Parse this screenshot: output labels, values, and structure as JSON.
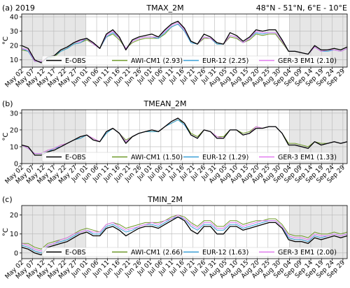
{
  "figure": {
    "background": "#ffffff"
  },
  "legend_colors": {
    "E-OBS": "#000000",
    "AWI": "#6f9a2a",
    "EUR": "#3aa0d8",
    "GER": "#e27cf0"
  },
  "chart_data": [
    {
      "type": "line",
      "panel_tag": "(a) 2019",
      "title": "TMAX_2M",
      "region_label": "48°N - 51°N, 6°E - 10°E",
      "ylabel": "°C",
      "ylim": [
        5,
        42
      ],
      "yticks": [
        10,
        20,
        30,
        40
      ],
      "xlim": [
        0,
        152
      ],
      "shaded_ranges": [
        [
          0,
          30
        ],
        [
          125,
          152
        ]
      ],
      "grid": true,
      "legend_placement": "bottom",
      "xtick_labels": [
        "May 02",
        "May 07",
        "May 12",
        "May 17",
        "May 22",
        "May 27",
        "Jun 01",
        "Jun 06",
        "Jun 11",
        "Jun 16",
        "Jun 21",
        "Jun 26",
        "Jul 01",
        "Jul 06",
        "Jul 11",
        "Jul 16",
        "Jul 21",
        "Jul 26",
        "Jul 31",
        "Aug 05",
        "Aug 10",
        "Aug 15",
        "Aug 20",
        "Aug 25",
        "Aug 30",
        "Sep 04",
        "Sep 09",
        "Sep 14",
        "Sep 19",
        "Sep 24",
        "Sep 29"
      ],
      "series": [
        {
          "name": "E-OBS",
          "key": "E-OBS",
          "values": [
            20,
            18,
            10,
            8,
            12,
            13,
            17,
            19,
            22,
            24,
            25,
            22,
            18,
            28,
            31,
            26,
            17,
            24,
            26,
            27,
            28,
            26,
            31,
            35,
            37,
            32,
            23,
            21,
            28,
            26,
            22,
            21,
            29,
            27,
            23,
            26,
            31,
            30,
            31,
            31,
            24,
            16,
            16,
            15,
            14,
            20,
            17,
            17,
            18,
            17,
            19
          ]
        },
        {
          "name": "AWI-CM1 (2.93)",
          "key": "AWI",
          "values": [
            17,
            16,
            9,
            9,
            11,
            12,
            16,
            18,
            21,
            22,
            24,
            21,
            18,
            26,
            28,
            24,
            18,
            22,
            24,
            25,
            25,
            25,
            28,
            33,
            35,
            30,
            23,
            21,
            25,
            25,
            21,
            21,
            26,
            25,
            22,
            24,
            28,
            27,
            28,
            28,
            22,
            16,
            16,
            15,
            14,
            19,
            16,
            17,
            17,
            16,
            18
          ]
        },
        {
          "name": "EUR-12 (2.25)",
          "key": "EUR",
          "values": [
            18,
            16,
            9,
            9,
            11,
            13,
            16,
            18,
            21,
            22,
            25,
            21,
            18,
            26,
            29,
            25,
            18,
            23,
            25,
            26,
            26,
            25,
            29,
            33,
            35,
            30,
            22,
            21,
            26,
            25,
            21,
            21,
            27,
            26,
            22,
            25,
            29,
            28,
            29,
            29,
            23,
            16,
            16,
            15,
            14,
            19,
            16,
            16,
            17,
            16,
            18
          ]
        },
        {
          "name": "GER-3 EM1 (2.10)",
          "key": "GER",
          "values": [
            18,
            17,
            9,
            9,
            12,
            13,
            17,
            19,
            22,
            23,
            25,
            21,
            18,
            27,
            30,
            25,
            18,
            23,
            25,
            26,
            26,
            26,
            30,
            34,
            36,
            31,
            23,
            21,
            26,
            25,
            22,
            21,
            27,
            26,
            22,
            25,
            30,
            29,
            29,
            29,
            23,
            16,
            16,
            15,
            14,
            19,
            16,
            17,
            17,
            16,
            18
          ]
        }
      ]
    },
    {
      "type": "line",
      "panel_tag": "(b)",
      "title": "TMEAN_2M",
      "ylabel": "°C",
      "ylim": [
        0,
        32
      ],
      "yticks": [
        0,
        10,
        20,
        30
      ],
      "xlim": [
        0,
        152
      ],
      "shaded_ranges": [
        [
          0,
          30
        ],
        [
          125,
          152
        ]
      ],
      "grid": true,
      "legend_placement": "bottom",
      "xtick_labels": [
        "May 02",
        "May 07",
        "May 12",
        "May 17",
        "May 22",
        "May 27",
        "Jun 01",
        "Jun 06",
        "Jun 11",
        "Jun 16",
        "Jun 21",
        "Jun 26",
        "Jul 01",
        "Jul 06",
        "Jul 11",
        "Jul 16",
        "Jul 21",
        "Jul 26",
        "Jul 31",
        "Aug 05",
        "Aug 10",
        "Aug 15",
        "Aug 20",
        "Aug 25",
        "Aug 30",
        "Sep 04",
        "Sep 09",
        "Sep 14",
        "Sep 19",
        "Sep 24",
        "Sep 29"
      ],
      "series": [
        {
          "name": "E-OBS",
          "key": "E-OBS",
          "values": [
            11,
            10,
            5,
            5,
            7,
            8,
            10,
            12,
            14,
            16,
            17,
            14,
            13,
            19,
            21,
            18,
            12,
            16,
            18,
            19,
            20,
            19,
            22,
            25,
            27,
            24,
            17,
            15,
            20,
            19,
            15,
            15,
            20,
            20,
            17,
            18,
            21,
            21,
            22,
            22,
            18,
            11,
            11,
            10,
            9,
            13,
            11,
            12,
            13,
            12,
            13
          ]
        },
        {
          "name": "AWI-CM1 (1.50)",
          "key": "AWI",
          "values": [
            11,
            9,
            6,
            6,
            8,
            9,
            11,
            12,
            14,
            15,
            17,
            15,
            13,
            18,
            21,
            18,
            14,
            16,
            18,
            19,
            19,
            19,
            22,
            24,
            26,
            24,
            18,
            16,
            20,
            19,
            16,
            16,
            20,
            20,
            18,
            19,
            22,
            21,
            22,
            22,
            18,
            12,
            12,
            11,
            10,
            13,
            12,
            12,
            13,
            12,
            13
          ]
        },
        {
          "name": "EUR-12 (1.29)",
          "key": "EUR",
          "values": [
            11,
            9,
            6,
            6,
            7,
            9,
            10,
            12,
            14,
            15,
            17,
            14,
            13,
            18,
            21,
            18,
            13,
            16,
            18,
            19,
            19,
            19,
            22,
            24,
            26,
            23,
            17,
            15,
            20,
            19,
            15,
            15,
            20,
            20,
            17,
            18,
            21,
            21,
            22,
            22,
            18,
            11,
            11,
            10,
            9,
            13,
            11,
            12,
            13,
            12,
            13
          ]
        },
        {
          "name": "GER-3 EM1 (1.33)",
          "key": "GER",
          "values": [
            11,
            9,
            6,
            6,
            8,
            9,
            11,
            12,
            14,
            16,
            17,
            15,
            13,
            19,
            21,
            18,
            13,
            16,
            18,
            19,
            20,
            19,
            22,
            25,
            27,
            24,
            17,
            15,
            20,
            19,
            16,
            15,
            20,
            20,
            17,
            18,
            22,
            21,
            22,
            22,
            18,
            11,
            11,
            10,
            9,
            13,
            11,
            12,
            13,
            12,
            13
          ]
        }
      ]
    },
    {
      "type": "line",
      "panel_tag": "(c)",
      "title": "TMIN_2M",
      "ylabel": "°C",
      "ylim": [
        -3,
        25
      ],
      "yticks": [
        0,
        10,
        20
      ],
      "xlim": [
        0,
        152
      ],
      "shaded_ranges": [
        [
          0,
          30
        ],
        [
          125,
          152
        ]
      ],
      "grid": true,
      "legend_placement": "bottom",
      "xtick_labels": [
        "May 02",
        "May 07",
        "May 12",
        "May 17",
        "May 22",
        "May 27",
        "Jun 01",
        "Jun 06",
        "Jun 11",
        "Jun 16",
        "Jun 21",
        "Jun 26",
        "Jul 01",
        "Jul 06",
        "Jul 11",
        "Jul 16",
        "Jul 21",
        "Jul 26",
        "Jul 31",
        "Aug 05",
        "Aug 10",
        "Aug 15",
        "Aug 20",
        "Aug 25",
        "Aug 30",
        "Sep 04",
        "Sep 09",
        "Sep 14",
        "Sep 19",
        "Sep 24",
        "Sep 29"
      ],
      "series": [
        {
          "name": "E-OBS",
          "key": "E-OBS",
          "values": [
            3,
            2,
            0,
            -1,
            3,
            4,
            5,
            6,
            8,
            10,
            11,
            9,
            9,
            13,
            14,
            12,
            9,
            11,
            13,
            14,
            14,
            13,
            15,
            17,
            19,
            17,
            12,
            10,
            14,
            14,
            10,
            10,
            14,
            14,
            12,
            13,
            14,
            15,
            16,
            16,
            13,
            7,
            6,
            6,
            5,
            8,
            7,
            8,
            9,
            8,
            9
          ]
        },
        {
          "name": "AWI-CM1 (2.66)",
          "key": "AWI",
          "values": [
            5,
            5,
            3,
            2,
            5,
            6,
            7,
            8,
            10,
            12,
            13,
            12,
            11,
            15,
            16,
            15,
            13,
            14,
            15,
            16,
            16,
            16,
            17,
            19,
            20,
            19,
            16,
            14,
            17,
            17,
            14,
            14,
            17,
            17,
            15,
            16,
            17,
            17,
            18,
            18,
            15,
            10,
            9,
            9,
            8,
            11,
            10,
            10,
            11,
            10,
            11
          ]
        },
        {
          "name": "EUR-12 (1.63)",
          "key": "EUR",
          "values": [
            4,
            3,
            1,
            0,
            4,
            5,
            6,
            7,
            9,
            11,
            12,
            10,
            10,
            14,
            15,
            13,
            11,
            12,
            14,
            15,
            15,
            14,
            16,
            18,
            19,
            18,
            14,
            12,
            15,
            15,
            12,
            12,
            15,
            15,
            13,
            14,
            15,
            16,
            17,
            17,
            14,
            8,
            7,
            7,
            6,
            9,
            8,
            9,
            10,
            9,
            10
          ]
        },
        {
          "name": "GER-3 EM1 (2.00)",
          "key": "GER",
          "values": [
            5,
            4,
            2,
            1,
            4,
            5,
            7,
            8,
            10,
            11,
            12,
            11,
            11,
            15,
            16,
            14,
            12,
            13,
            14,
            15,
            16,
            15,
            17,
            18,
            20,
            18,
            15,
            13,
            16,
            16,
            13,
            13,
            16,
            16,
            14,
            15,
            16,
            17,
            17,
            17,
            14,
            9,
            8,
            8,
            7,
            10,
            9,
            9,
            10,
            9,
            10
          ]
        }
      ]
    }
  ]
}
